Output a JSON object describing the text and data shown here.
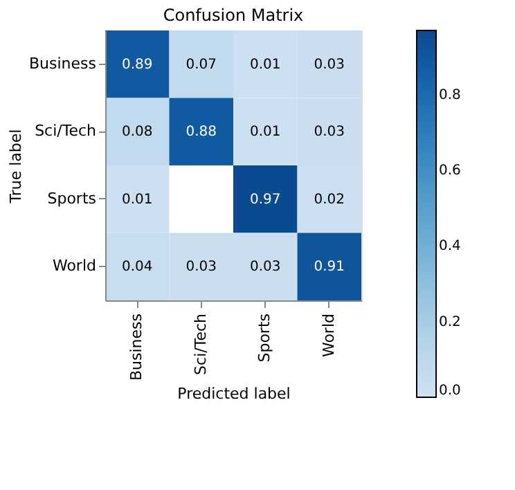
{
  "chart_data": {
    "type": "heatmap",
    "title": "Confusion Matrix",
    "xlabel": "Predicted label",
    "ylabel": "True label",
    "categories": [
      "Business",
      "Sci/Tech",
      "Sports",
      "World"
    ],
    "y_categories": [
      "Business",
      "Sci/Tech",
      "Sports",
      "World"
    ],
    "cells": [
      [
        0.89,
        0.07,
        0.01,
        0.03
      ],
      [
        0.08,
        0.88,
        0.01,
        0.03
      ],
      [
        0.01,
        null,
        0.97,
        0.02
      ],
      [
        0.04,
        0.03,
        0.03,
        0.91
      ]
    ],
    "clim": [
      0,
      0.97
    ],
    "cticks": [
      {
        "value": 0,
        "label": "0.0"
      },
      0.2,
      0.4,
      0.6,
      0.8
    ],
    "data_labels": true
  }
}
